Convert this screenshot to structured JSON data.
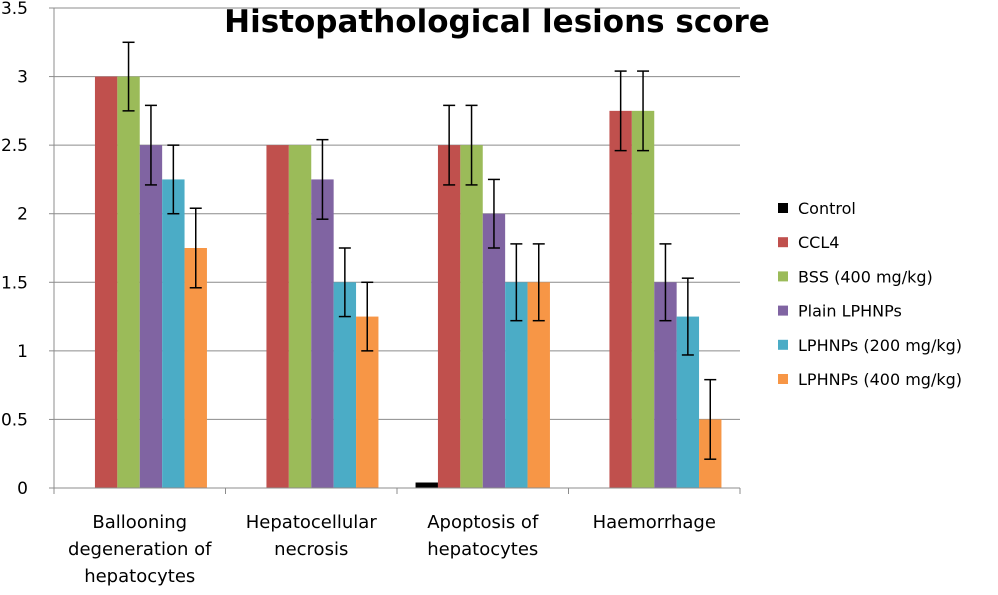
{
  "chart_data": {
    "type": "bar",
    "title": "Histopathological lesions score",
    "xlabel": "",
    "ylabel": "",
    "ylim": [
      0,
      3.5
    ],
    "y_ticks": [
      "0",
      "0.5",
      "1",
      "1.5",
      "2",
      "2.5",
      "3",
      "3.5"
    ],
    "grid": true,
    "legend_position": "right",
    "categories": [
      [
        "Ballooning",
        "degeneration of",
        "hepatocytes"
      ],
      [
        "Hepatocellular",
        "necrosis"
      ],
      [
        "Apoptosis of",
        "hepatocytes"
      ],
      [
        "Haemorrhage"
      ]
    ],
    "series": [
      {
        "name": "Control",
        "color": "#000000",
        "values": [
          0,
          0,
          0.04,
          0
        ],
        "errors": [
          0,
          0,
          0,
          0
        ]
      },
      {
        "name": "CCL4",
        "color": "#c0504d",
        "values": [
          3.0,
          2.5,
          2.5,
          2.75
        ],
        "errors": [
          0,
          0,
          0.29,
          0.29
        ]
      },
      {
        "name": "BSS (400 mg/kg)",
        "color": "#9bbb59",
        "values": [
          3.0,
          2.5,
          2.5,
          2.75
        ],
        "errors": [
          0.25,
          0,
          0.29,
          0.29
        ]
      },
      {
        "name": "Plain LPHNPs",
        "color": "#8064a2",
        "values": [
          2.5,
          2.25,
          2.0,
          1.5
        ],
        "errors": [
          0.29,
          0.29,
          0.25,
          0.28
        ]
      },
      {
        "name": "LPHNPs (200 mg/kg)",
        "color": "#4bacc6",
        "values": [
          2.25,
          1.5,
          1.5,
          1.25
        ],
        "errors": [
          0.25,
          0.25,
          0.28,
          0.28
        ]
      },
      {
        "name": "LPHNPs (400 mg/kg)",
        "color": "#f79646",
        "values": [
          1.75,
          1.25,
          1.5,
          0.5
        ],
        "errors": [
          0.29,
          0.25,
          0.28,
          0.29
        ]
      }
    ]
  }
}
